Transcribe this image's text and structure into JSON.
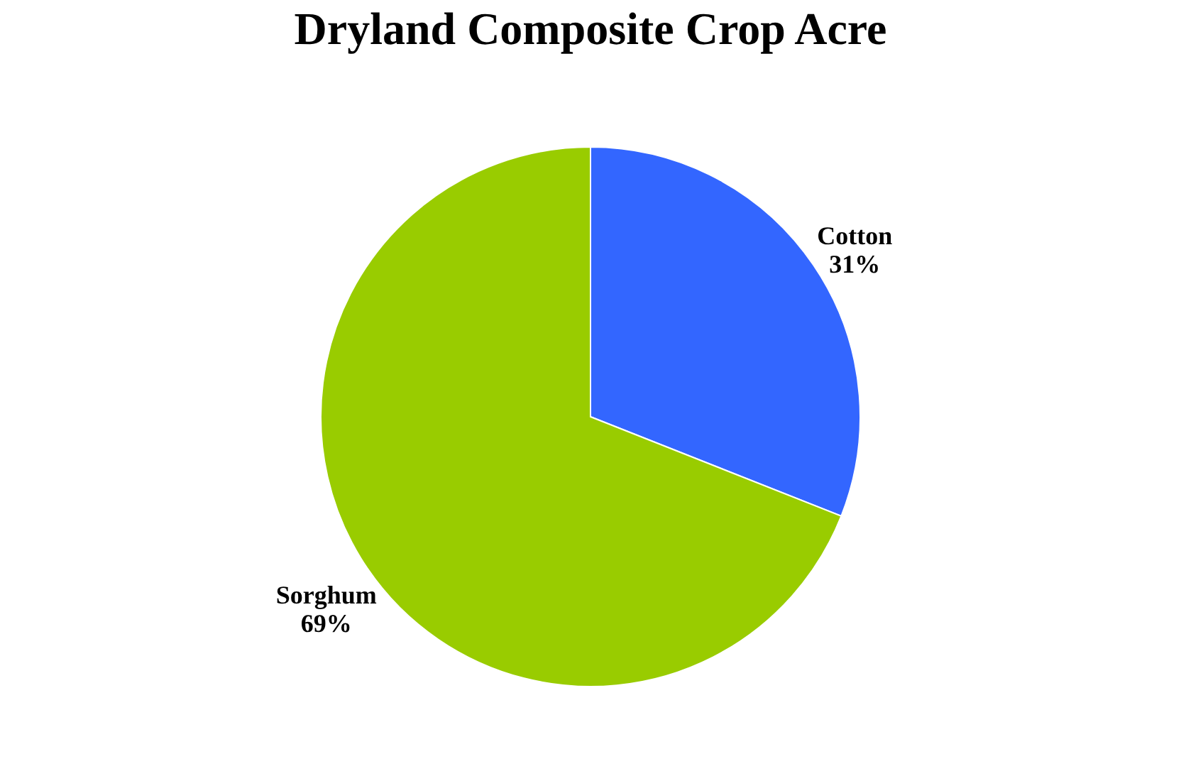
{
  "chart_data": {
    "type": "pie",
    "title": "Dryland Composite Crop Acre",
    "categories": [
      "Cotton",
      "Sorghum"
    ],
    "values": [
      31,
      69
    ],
    "value_labels": [
      "31%",
      "69%"
    ],
    "colors": [
      "#3366ff",
      "#99cc00"
    ],
    "legend": false
  }
}
